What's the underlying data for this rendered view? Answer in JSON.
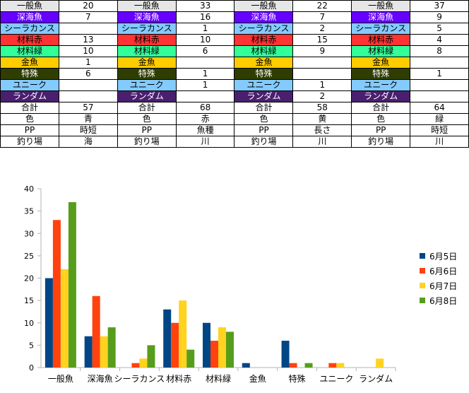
{
  "table": {
    "rows": [
      {
        "label": "一般魚",
        "bg": "#e6e6e6",
        "text": "#000000",
        "values": [
          "20",
          "33",
          "22",
          "37"
        ]
      },
      {
        "label": "深海魚",
        "bg": "#6600ff",
        "text": "#ffffff",
        "values": [
          "7",
          "16",
          "7",
          "9"
        ]
      },
      {
        "label": "シーラカンス",
        "bg": "#83caff",
        "text": "#000000",
        "values": [
          "",
          "1",
          "2",
          "5"
        ]
      },
      {
        "label": "材料赤",
        "bg": "#ff3333",
        "text": "#000000",
        "values": [
          "13",
          "10",
          "15",
          "4"
        ]
      },
      {
        "label": "材料緑",
        "bg": "#33ff99",
        "text": "#000000",
        "values": [
          "10",
          "6",
          "9",
          "8"
        ]
      },
      {
        "label": "金魚",
        "bg": "#ffcc00",
        "text": "#000000",
        "values": [
          "1",
          "",
          "",
          ""
        ]
      },
      {
        "label": "特殊",
        "bg": "#2f3d00",
        "text": "#ffffff",
        "values": [
          "6",
          "1",
          "",
          "1"
        ]
      },
      {
        "label": "ユニーク",
        "bg": "#83caff",
        "text": "#000000",
        "values": [
          "",
          "1",
          "1",
          ""
        ]
      },
      {
        "label": "ランダム",
        "bg": "#4b1f6f",
        "text": "#ffffff",
        "values": [
          "",
          "",
          "2",
          ""
        ]
      },
      {
        "label": "合計",
        "bg": "#ffffff",
        "text": "#000000",
        "values": [
          "57",
          "68",
          "58",
          "64"
        ]
      },
      {
        "label": "色",
        "bg": "#ffffff",
        "text": "#000000",
        "values": [
          "青",
          "赤",
          "黄",
          "緑"
        ]
      },
      {
        "label": "PP",
        "bg": "#ffffff",
        "text": "#000000",
        "values": [
          "時短",
          "魚種",
          "長さ",
          "時短"
        ]
      },
      {
        "label": "釣り場",
        "bg": "#ffffff",
        "text": "#000000",
        "values": [
          "海",
          "川",
          "川",
          "川"
        ]
      }
    ]
  },
  "chart_data": {
    "type": "bar",
    "categories": [
      "一般魚",
      "深海魚",
      "シーラカンス",
      "材料赤",
      "材料緑",
      "金魚",
      "特殊",
      "ユニーク",
      "ランダム"
    ],
    "series": [
      {
        "name": "6月5日",
        "color": "#004586",
        "values": [
          20,
          7,
          0,
          13,
          10,
          1,
          6,
          0,
          0
        ]
      },
      {
        "name": "6月6日",
        "color": "#ff420e",
        "values": [
          33,
          16,
          1,
          10,
          6,
          0,
          1,
          1,
          0
        ]
      },
      {
        "name": "6月7日",
        "color": "#ffd320",
        "values": [
          22,
          7,
          2,
          15,
          9,
          0,
          0,
          1,
          2
        ]
      },
      {
        "name": "6月8日",
        "color": "#579d1c",
        "values": [
          37,
          9,
          5,
          4,
          8,
          0,
          1,
          0,
          0
        ]
      }
    ],
    "ylim": [
      0,
      40
    ],
    "yticks": [
      "0",
      "5",
      "10",
      "15",
      "20",
      "25",
      "30",
      "35",
      "40"
    ],
    "grid": false,
    "legend": "right"
  }
}
